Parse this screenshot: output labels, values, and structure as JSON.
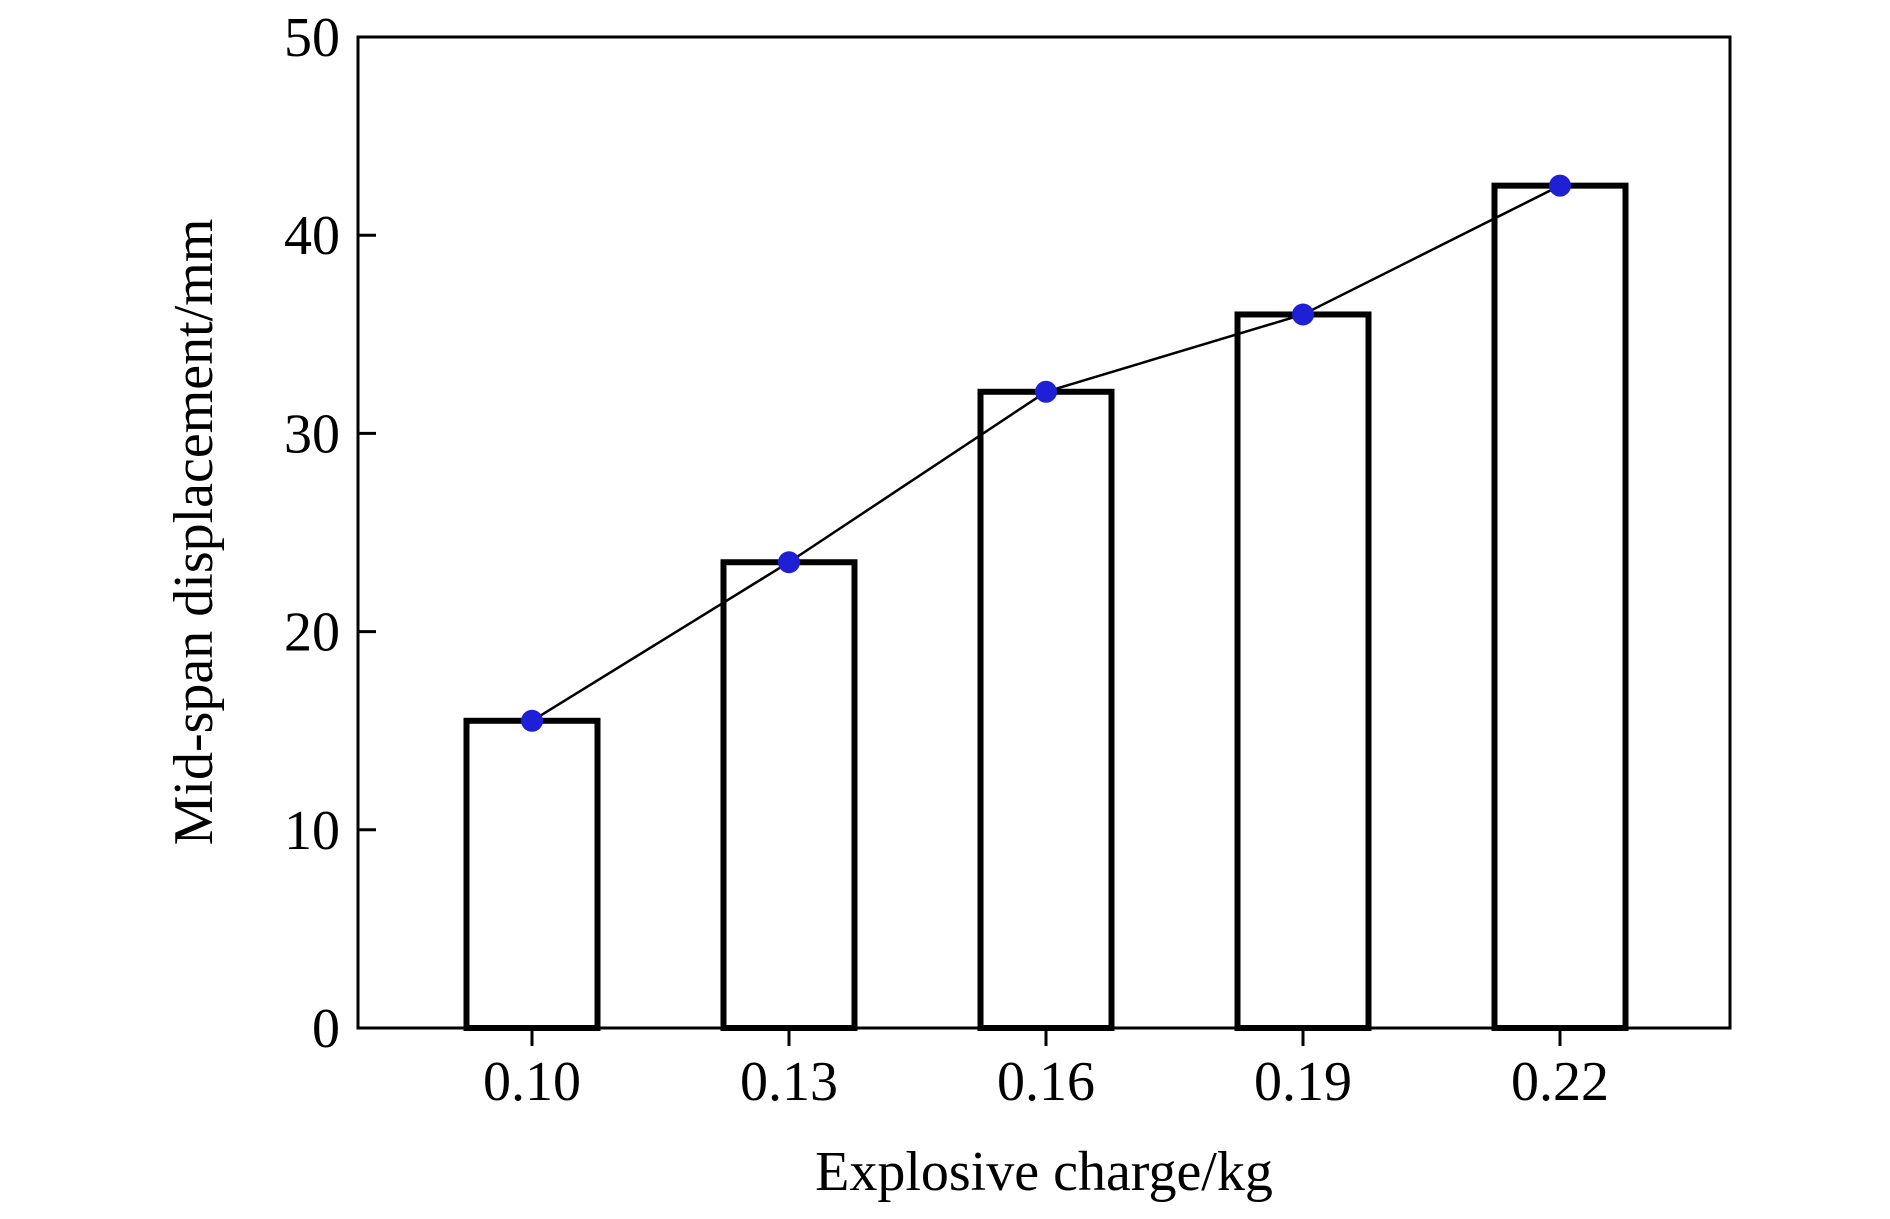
{
  "chart_data": {
    "type": "bar",
    "categories": [
      "0.10",
      "0.13",
      "0.16",
      "0.19",
      "0.22"
    ],
    "values": [
      15.5,
      23.5,
      32.1,
      36.0,
      42.5
    ],
    "overlay_line": {
      "type": "line",
      "marker": "circle",
      "marker_color": "#1f1fd6",
      "line_color": "#000000",
      "values": [
        15.5,
        23.5,
        32.1,
        36.0,
        42.5
      ]
    },
    "title": "",
    "xlabel": "Explosive charge/kg",
    "ylabel": "Mid-span displacement/mm",
    "ylim": [
      0,
      50
    ],
    "yticks": [
      "0",
      "10",
      "20",
      "30",
      "40",
      "50"
    ],
    "bar_fill": "#ffffff",
    "bar_edge": "#000000",
    "grid": false,
    "legend": "none"
  }
}
